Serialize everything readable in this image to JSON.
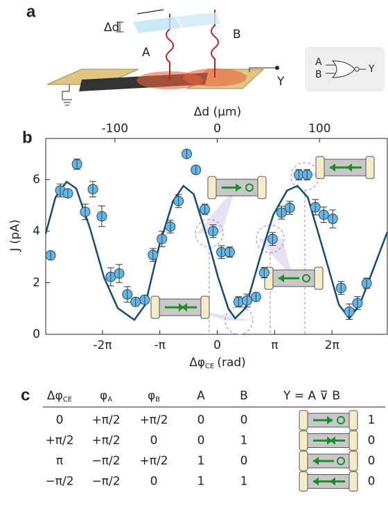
{
  "panel_labels": {
    "a": "a",
    "b": "b",
    "c": "c"
  },
  "panel_a": {
    "delta_d": "Δd",
    "beam_a": "A",
    "beam_b": "B",
    "output": "Y",
    "gate_in_a": "A",
    "gate_in_b": "B",
    "gate_out": "Y"
  },
  "chart_data": {
    "type": "scatter",
    "xlabel": "Δφ",
    "xlabel_sub": "CE",
    "xlabel_unit": "(rad)",
    "ylabel": "J (pA)",
    "x2label": "Δd (μm)",
    "xlim": [
      -9.39,
      9.31
    ],
    "xticks": [
      {
        "value": -6.2832,
        "label": "-2π"
      },
      {
        "value": -3.1416,
        "label": "-π"
      },
      0,
      {
        "value": 3.1416,
        "label": "π"
      },
      {
        "value": 6.2832,
        "label": "2π"
      }
    ],
    "x2lim": [
      -167.6,
      166.2
    ],
    "x2ticks": [
      -100,
      0,
      100
    ],
    "ylim": [
      0,
      7.6
    ],
    "yticks": [
      0,
      2,
      4,
      6
    ],
    "series": [
      {
        "color": "#6ab4df",
        "x": [
          -9.12,
          -8.59,
          -8.18,
          -7.68,
          -7.23,
          -6.81,
          -6.32,
          -5.83,
          -5.37,
          -4.92,
          -4.47,
          -3.97,
          -3.52,
          -3.03,
          -2.57,
          -2.12,
          -1.67,
          -1.17,
          -0.68,
          -0.23,
          0.23,
          0.68,
          1.17,
          1.63,
          2.12,
          2.57,
          3.03,
          3.52,
          3.97,
          4.47,
          4.92,
          5.37,
          5.83,
          6.32,
          6.78,
          7.23,
          7.68,
          8.18
        ],
        "values": [
          3.06,
          5.58,
          5.47,
          6.6,
          4.75,
          5.63,
          4.58,
          2.23,
          2.36,
          1.55,
          1.26,
          1.34,
          3.08,
          3.7,
          4.18,
          5.17,
          7.0,
          6.38,
          4.85,
          4.0,
          3.19,
          3.19,
          1.26,
          1.31,
          1.45,
          2.39,
          3.7,
          4.72,
          4.91,
          6.19,
          6.19,
          4.93,
          4.64,
          4.48,
          1.8,
          0.88,
          1.21,
          1.98
        ],
        "errors": [
          0.1,
          0.25,
          0.15,
          0.2,
          0.3,
          0.3,
          0.4,
          0.35,
          0.35,
          0.3,
          0.15,
          0.15,
          0.25,
          0.3,
          0.25,
          0.25,
          0.1,
          0.15,
          0.2,
          0.25,
          0.25,
          0.2,
          0.2,
          0.25,
          0.15,
          0.2,
          0.25,
          0.25,
          0.25,
          0.2,
          0.2,
          0.3,
          0.3,
          0.35,
          0.25,
          0.3,
          0.25,
          0.2
        ]
      },
      {
        "color": "#154b6e",
        "x": [
          -9.39,
          -8.86,
          -8.25,
          -7.72,
          -6.96,
          -6.21,
          -5.45,
          -4.54,
          -3.94,
          -3.18,
          -2.42,
          -1.85,
          -1.29,
          -0.53,
          0.04,
          0.61,
          0.98,
          1.55,
          2.31,
          3.07,
          3.82,
          4.39,
          4.96,
          5.9,
          6.66,
          7.23,
          7.8,
          8.74,
          9.31
        ],
        "values": [
          3.91,
          5.31,
          5.92,
          5.66,
          4.1,
          2.23,
          1.02,
          0.56,
          1.15,
          3.43,
          5.17,
          5.76,
          5.44,
          3.7,
          2.23,
          0.99,
          0.62,
          1.02,
          2.9,
          4.64,
          5.58,
          5.76,
          5.31,
          3.03,
          1.15,
          0.62,
          1.15,
          2.9,
          3.97
        ]
      }
    ]
  },
  "table": {
    "header": [
      {
        "text": "Δφ",
        "sub": "CE"
      },
      {
        "text": "φ",
        "sub": "A"
      },
      {
        "text": "φ",
        "sub": "B"
      },
      {
        "text": "A"
      },
      {
        "text": "B"
      },
      {
        "text": "Y = A ⊽ B"
      }
    ],
    "rows": [
      [
        "0",
        "+π/2",
        "+π/2",
        "0",
        "0",
        "1"
      ],
      [
        "+π/2",
        "+π/2",
        "0",
        "0",
        "1",
        "0"
      ],
      [
        "π",
        "−π/2",
        "+π/2",
        "1",
        "0",
        "0"
      ],
      [
        "−π/2",
        "−π/2",
        "0",
        "1",
        "1",
        "0"
      ]
    ]
  }
}
